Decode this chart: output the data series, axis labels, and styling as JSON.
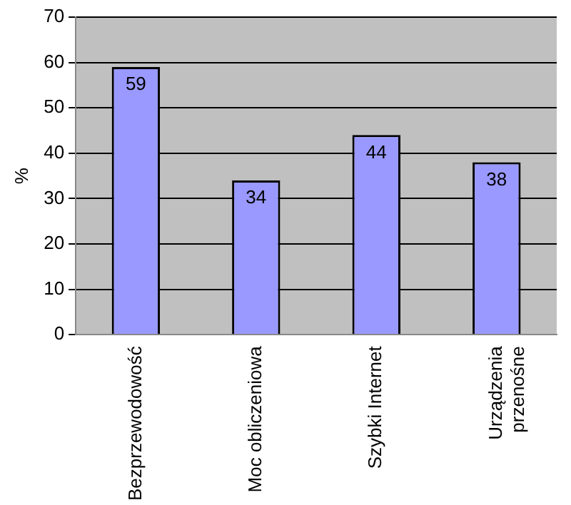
{
  "chart_data": {
    "type": "bar",
    "ylabel": "%",
    "categories": [
      "Bezprzewodowość",
      "Moc obliczeniowa",
      "Szybki Internet",
      "Urządzenia przenośne"
    ],
    "values": [
      59,
      34,
      44,
      38
    ],
    "color": "#9999ff",
    "ylim": [
      0,
      70
    ],
    "yticks": [
      0,
      10,
      20,
      30,
      40,
      50,
      60,
      70
    ],
    "grid": "y",
    "data_labels": true,
    "legend": false
  }
}
